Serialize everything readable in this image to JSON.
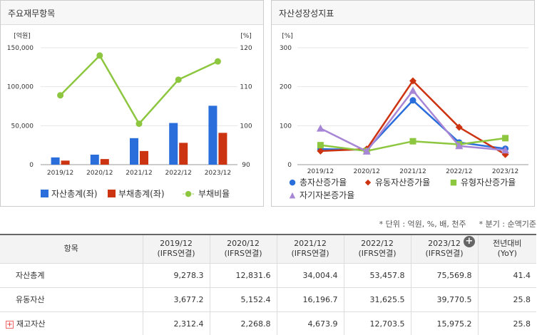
{
  "left_panel": {
    "title": "주요재무항목"
  },
  "right_panel": {
    "title": "자산성장성지표"
  },
  "chart_data": [
    {
      "type": "bar",
      "title": "",
      "categories": [
        "2019/12",
        "2020/12",
        "2021/12",
        "2022/12",
        "2023/12"
      ],
      "y_left_unit": "[억원]",
      "y_right_unit": "[%]",
      "y_left_ticks": [
        "150,000",
        "100,000",
        "50,000",
        "0"
      ],
      "y_right_ticks": [
        "120",
        "110",
        "100",
        "90"
      ],
      "ylim_left": [
        0,
        150000
      ],
      "ylim_right": [
        90,
        120
      ],
      "series": [
        {
          "name": "자산총계(좌)",
          "type": "bar",
          "axis": "left",
          "color": "#2a6edb",
          "values": [
            9278.3,
            12831.6,
            34004.4,
            53457.8,
            75569.8
          ]
        },
        {
          "name": "부채총계(좌)",
          "type": "bar",
          "axis": "left",
          "color": "#cc3311",
          "values": [
            5200,
            7200,
            17500,
            28000,
            40800
          ]
        },
        {
          "name": "부채비율",
          "type": "line",
          "axis": "right",
          "color": "#8dc63f",
          "values": [
            107.8,
            118.0,
            100.5,
            111.8,
            116.5
          ]
        }
      ],
      "legend_position": "bottom"
    },
    {
      "type": "line",
      "title": "",
      "categories": [
        "2019/12",
        "2020/12",
        "2021/12",
        "2022/12",
        "2023/12"
      ],
      "y_unit": "[%]",
      "y_ticks": [
        "300",
        "200",
        "100",
        "0"
      ],
      "ylim": [
        0,
        300
      ],
      "series": [
        {
          "name": "총자산증가율",
          "color": "#2a6edb",
          "marker": "circle",
          "values": [
            40,
            38,
            165,
            57,
            41
          ]
        },
        {
          "name": "유동자산증가율",
          "color": "#cc3311",
          "marker": "diamond",
          "values": [
            35,
            40,
            215,
            96,
            26
          ]
        },
        {
          "name": "유형자산증가율",
          "color": "#8dc63f",
          "marker": "square",
          "values": [
            50,
            35,
            60,
            52,
            68
          ]
        },
        {
          "name": "자기자본증가율",
          "color": "#a886d6",
          "marker": "triangle",
          "values": [
            93,
            34,
            190,
            48,
            37
          ]
        }
      ],
      "legend_position": "bottom"
    }
  ],
  "notes": {
    "unit": "* 단위 : 억원, %, 배, 천주",
    "quarter": "* 분기 : 순액기준"
  },
  "table": {
    "columns": [
      {
        "line1": "항목",
        "line2": ""
      },
      {
        "line1": "2019/12",
        "line2": "(IFRS연결)"
      },
      {
        "line1": "2020/12",
        "line2": "(IFRS연결)"
      },
      {
        "line1": "2021/12",
        "line2": "(IFRS연결)"
      },
      {
        "line1": "2022/12",
        "line2": "(IFRS연결)"
      },
      {
        "line1": "2023/12",
        "line2": "(IFRS연결)"
      },
      {
        "line1": "전년대비",
        "line2": "(YoY)"
      }
    ],
    "rows": [
      {
        "label": "자산총계",
        "values": [
          "9,278.3",
          "12,831.6",
          "34,004.4",
          "53,457.8",
          "75,569.8",
          "41.4"
        ]
      },
      {
        "label": "유동자산",
        "values": [
          "3,677.2",
          "5,152.4",
          "16,196.7",
          "31,625.5",
          "39,770.5",
          "25.8"
        ]
      },
      {
        "label": "재고자산",
        "values": [
          "2,312.4",
          "2,268.8",
          "4,673.9",
          "12,703.5",
          "15,975.2",
          "25.8"
        ]
      }
    ]
  }
}
